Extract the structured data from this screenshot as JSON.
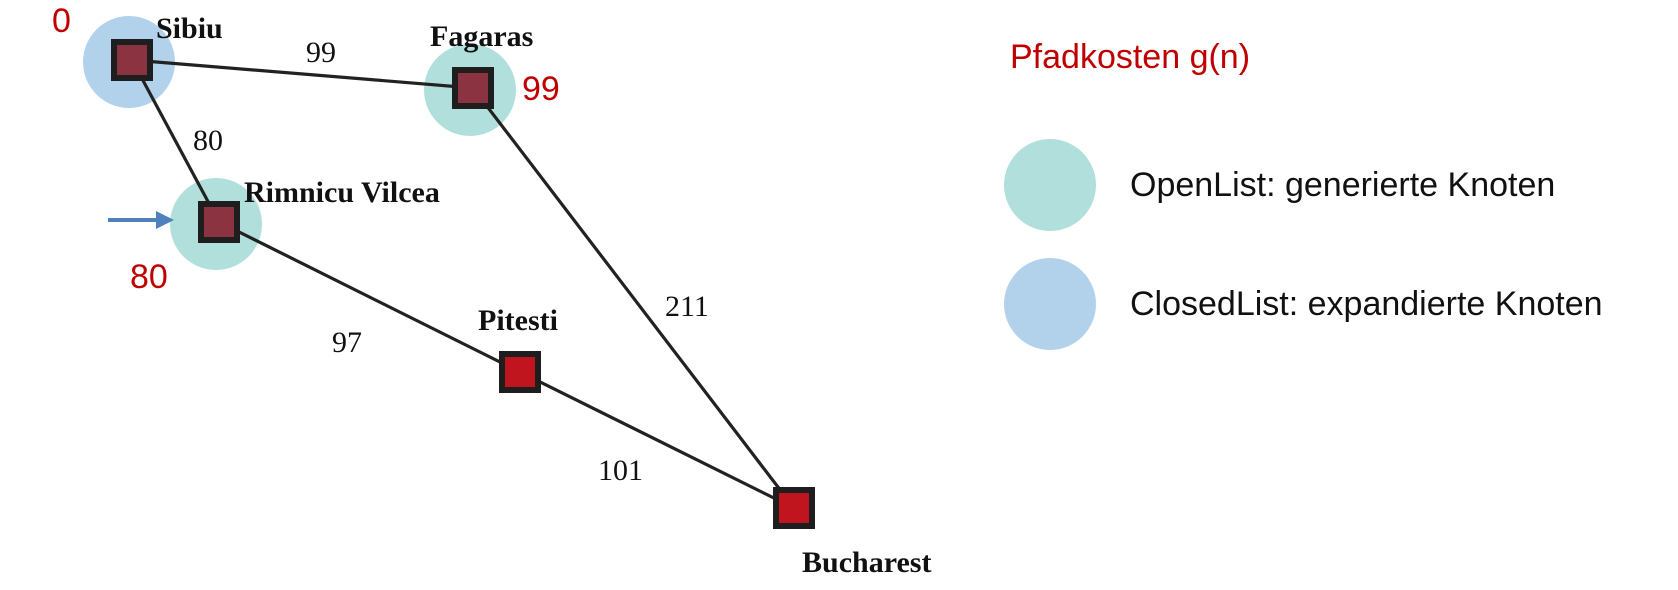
{
  "colors": {
    "open": "#b1e0dc",
    "closed": "#b2d2ec",
    "cost": "#c00000",
    "edge": "#222222",
    "node_fill_generated": "#8b3341",
    "node_fill_plain": "#c0141e",
    "node_border": "#1e1e1e",
    "arrow": "#4f81bd"
  },
  "graph": {
    "nodes": [
      {
        "id": "sibiu",
        "label": "Sibiu",
        "status": "closed",
        "cost": "0"
      },
      {
        "id": "fagaras",
        "label": "Fagaras",
        "status": "open",
        "cost": "99"
      },
      {
        "id": "rimnicu",
        "label": "Rimnicu Vilcea",
        "status": "open",
        "cost": "80",
        "current": true
      },
      {
        "id": "pitesti",
        "label": "Pitesti",
        "status": "none",
        "cost": ""
      },
      {
        "id": "bucharest",
        "label": "Bucharest",
        "status": "none",
        "cost": ""
      }
    ],
    "edges": [
      {
        "from": "sibiu",
        "to": "fagaras",
        "weight": "99"
      },
      {
        "from": "sibiu",
        "to": "rimnicu",
        "weight": "80"
      },
      {
        "from": "rimnicu",
        "to": "pitesti",
        "weight": "97"
      },
      {
        "from": "pitesti",
        "to": "bucharest",
        "weight": "101"
      },
      {
        "from": "fagaras",
        "to": "bucharest",
        "weight": "211"
      }
    ]
  },
  "legend": {
    "title": "Pfadkosten g(n)",
    "open_label": "OpenList: generierte Knoten",
    "closed_label": "ClosedList: expandierte Knoten"
  }
}
